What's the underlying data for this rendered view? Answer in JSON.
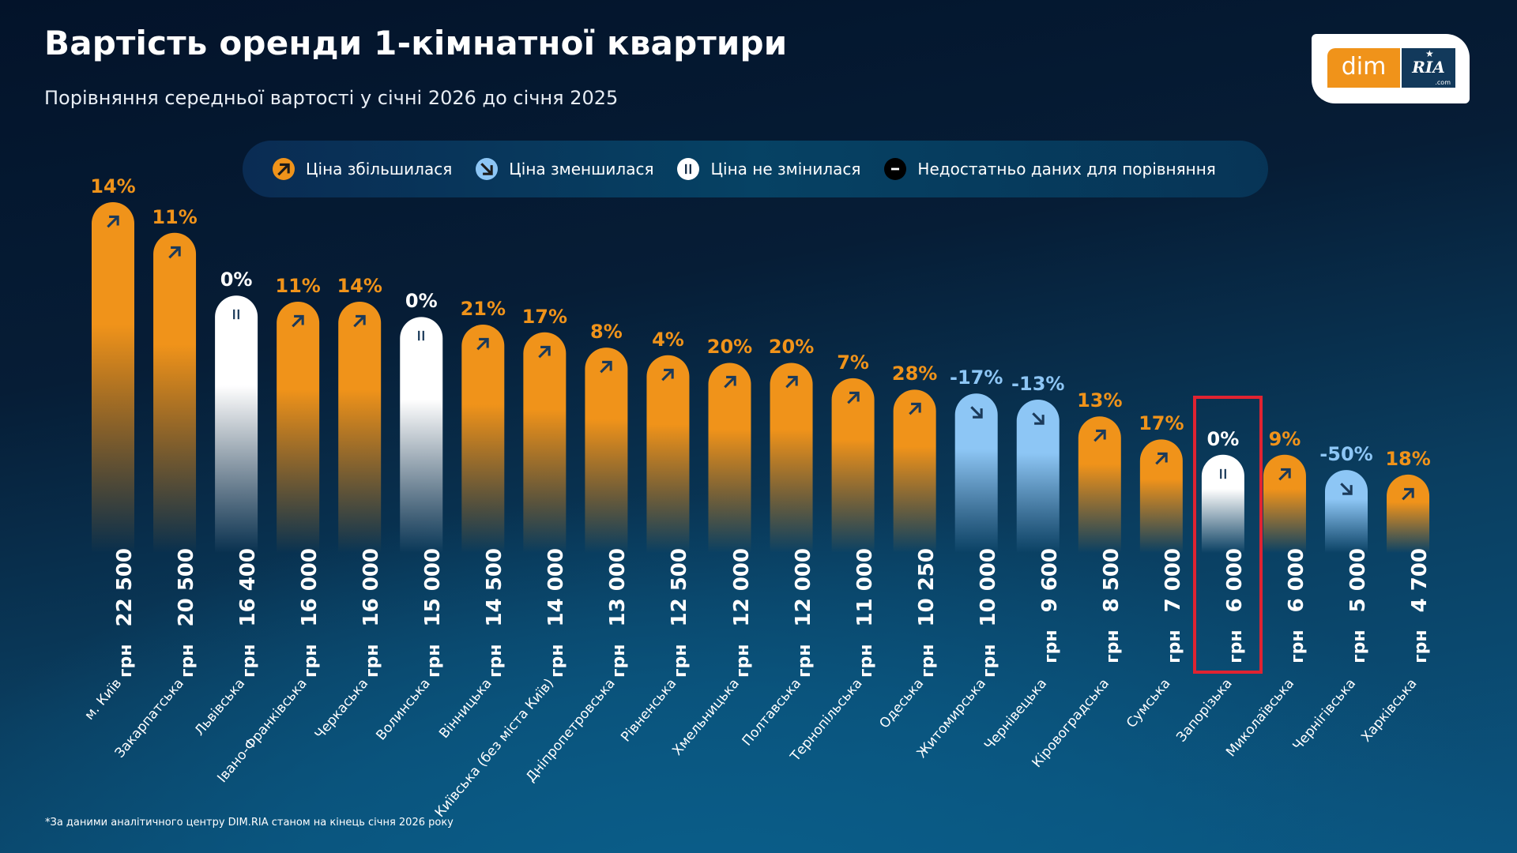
{
  "header": {
    "title": "Вартість оренди 1-кімнатної квартири",
    "subtitle": "Порівняння середньої вартості у січні 2026 до січня 2025"
  },
  "logo": {
    "left": "dim",
    "right": "RIA",
    "suffix": ".com"
  },
  "legend": [
    {
      "label": "Ціна збільшилася",
      "status": "up",
      "icon": "arrow-up-right-icon"
    },
    {
      "label": "Ціна зменшилася",
      "status": "down",
      "icon": "arrow-down-right-icon"
    },
    {
      "label": "Ціна не змінилася",
      "status": "same",
      "icon": "pause-bars-icon"
    },
    {
      "label": "Недостатньо даних для порівняння",
      "status": "na",
      "icon": "minus-icon"
    }
  ],
  "colors": {
    "up": "#f0931a",
    "down": "#8dc6f5",
    "same": "#ffffff",
    "na": "#000000",
    "icon_dark": "#1b3a5a",
    "highlight": "#e12331"
  },
  "currency": "грн",
  "highlighted_region": "Запорізька",
  "footnote": "*За даними аналітичного центру DIM.RIA станом на кінець січня 2026 року",
  "chart_data": {
    "type": "bar",
    "title": "Вартість оренди 1-кімнатної квартири",
    "subtitle": "Порівняння середньої вартості у січні 2026 до січня 2025",
    "xlabel": "",
    "ylabel": "грн",
    "unit": "грн",
    "ylim": [
      0,
      22500
    ],
    "grid": false,
    "legend_position": "top",
    "categories": [
      "м. Київ",
      "Закарпатська",
      "Львівська",
      "Івано-Франківська",
      "Черкаська",
      "Волинська",
      "Вінницька",
      "Київська (без міста Київ)",
      "Дніпропетровська",
      "Рівненська",
      "Хмельницька",
      "Полтавська",
      "Тернопільська",
      "Одеська",
      "Житомирська",
      "Чернівецька",
      "Кіровоградська",
      "Сумська",
      "Запорізька",
      "Миколаївська",
      "Чернігівська",
      "Харківська"
    ],
    "values": [
      22500,
      20500,
      16400,
      16000,
      16000,
      15000,
      14500,
      14000,
      13000,
      12500,
      12000,
      12000,
      11000,
      10250,
      10000,
      9600,
      8500,
      7000,
      6000,
      6000,
      5000,
      4700
    ],
    "value_labels": [
      "22 500",
      "20 500",
      "16 400",
      "16 000",
      "16 000",
      "15 000",
      "14 500",
      "14 000",
      "13 000",
      "12 500",
      "12 000",
      "12 000",
      "11 000",
      "10 250",
      "10 000",
      "9 600",
      "8 500",
      "7 000",
      "6 000",
      "6 000",
      "5 000",
      "4 700"
    ],
    "change_pct": [
      14,
      11,
      0,
      11,
      14,
      0,
      21,
      17,
      8,
      4,
      20,
      20,
      7,
      28,
      -17,
      -13,
      13,
      17,
      0,
      9,
      -50,
      18
    ],
    "change_labels": [
      "14%",
      "11%",
      "0%",
      "11%",
      "14%",
      "0%",
      "21%",
      "17%",
      "8%",
      "4%",
      "20%",
      "20%",
      "7%",
      "28%",
      "-17%",
      "-13%",
      "13%",
      "17%",
      "0%",
      "9%",
      "-50%",
      "18%"
    ],
    "status": [
      "up",
      "up",
      "same",
      "up",
      "up",
      "same",
      "up",
      "up",
      "up",
      "up",
      "up",
      "up",
      "up",
      "up",
      "down",
      "down",
      "up",
      "up",
      "same",
      "up",
      "down",
      "up"
    ]
  }
}
